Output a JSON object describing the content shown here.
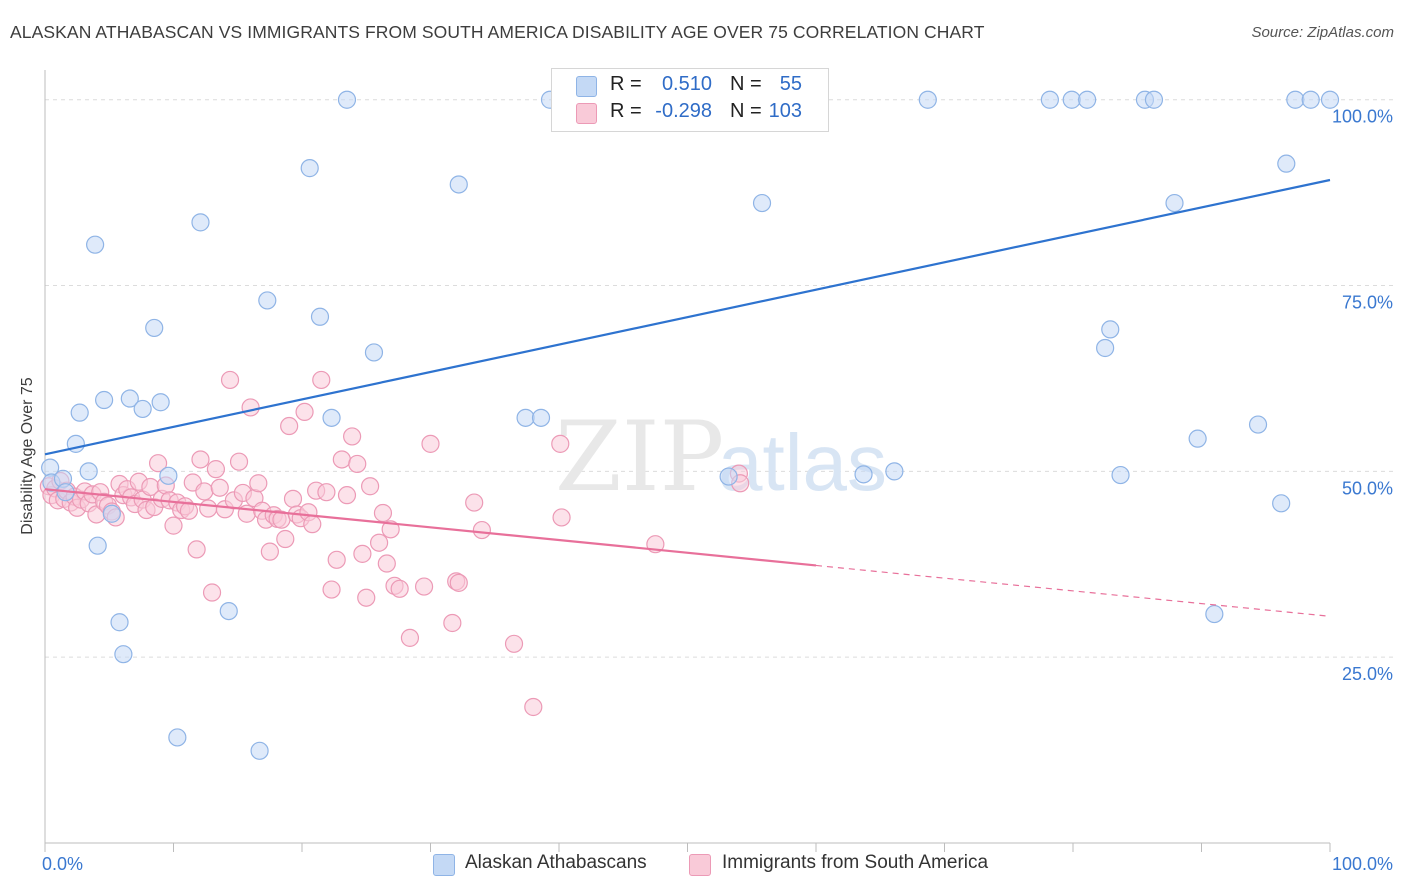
{
  "title": "ALASKAN ATHABASCAN VS IMMIGRANTS FROM SOUTH AMERICA DISABILITY AGE OVER 75 CORRELATION CHART",
  "source": "Source: ZipAtlas.com",
  "watermark": {
    "zip": "ZIP",
    "atlas": "atlas"
  },
  "legend": {
    "rows": [
      {
        "r_label": "R =",
        "r_value": "0.510",
        "n_label": "N =",
        "n_value": "55"
      },
      {
        "r_label": "R =",
        "r_value": "-0.298",
        "n_label": "N =",
        "n_value": "103"
      }
    ]
  },
  "bottom_legend": {
    "series_a": "Alaskan Athabascans",
    "series_b": "Immigrants from South America"
  },
  "colors": {
    "blue_fill": "#c4d9f5",
    "blue_stroke": "#8fb4e6",
    "blue_line": "#2e73cf",
    "pink_fill": "#f9cad8",
    "pink_stroke": "#ec9ab6",
    "pink_line": "#e8709a",
    "axis_label": "#3a78d0",
    "grid": "#dcdcdc"
  },
  "chart_data": {
    "type": "scatter",
    "title": "ALASKAN ATHABASCAN VS IMMIGRANTS FROM SOUTH AMERICA DISABILITY AGE OVER 75 CORRELATION CHART",
    "xlabel": "",
    "ylabel": "Disability Age Over 75",
    "xlim": [
      0,
      100
    ],
    "ylim": [
      0,
      104
    ],
    "x_tick_labels": [
      "0.0%",
      "100.0%"
    ],
    "y_ticks": [
      25,
      50,
      75,
      100
    ],
    "y_tick_labels": [
      "25.0%",
      "50.0%",
      "75.0%",
      "100.0%"
    ],
    "grid": true,
    "legend_position": "top-center",
    "series": [
      {
        "name": "Alaskan Athabascans",
        "color": "#8fb4e6",
        "trend": {
          "x": [
            0,
            100
          ],
          "y": [
            52.3,
            89.2
          ],
          "dashed_from": null
        },
        "points": [
          {
            "x": 0.4,
            "y": 50.5
          },
          {
            "x": 0.5,
            "y": 48.5
          },
          {
            "x": 1.4,
            "y": 49
          },
          {
            "x": 1.6,
            "y": 47.2
          },
          {
            "x": 2.4,
            "y": 53.7
          },
          {
            "x": 2.7,
            "y": 57.9
          },
          {
            "x": 3.4,
            "y": 50
          },
          {
            "x": 3.9,
            "y": 80.5
          },
          {
            "x": 4.1,
            "y": 40
          },
          {
            "x": 4.6,
            "y": 59.6
          },
          {
            "x": 5.2,
            "y": 44.3
          },
          {
            "x": 5.8,
            "y": 29.7
          },
          {
            "x": 6.1,
            "y": 25.4
          },
          {
            "x": 6.6,
            "y": 59.8
          },
          {
            "x": 7.6,
            "y": 58.4
          },
          {
            "x": 8.5,
            "y": 69.3
          },
          {
            "x": 9.0,
            "y": 59.3
          },
          {
            "x": 9.6,
            "y": 49.4
          },
          {
            "x": 10.3,
            "y": 14.2
          },
          {
            "x": 12.1,
            "y": 83.5
          },
          {
            "x": 14.3,
            "y": 31.2
          },
          {
            "x": 16.7,
            "y": 12.4
          },
          {
            "x": 17.3,
            "y": 73
          },
          {
            "x": 20.6,
            "y": 90.8
          },
          {
            "x": 21.4,
            "y": 70.8
          },
          {
            "x": 22.3,
            "y": 57.2
          },
          {
            "x": 23.5,
            "y": 100
          },
          {
            "x": 25.6,
            "y": 66
          },
          {
            "x": 32.2,
            "y": 88.6
          },
          {
            "x": 37.4,
            "y": 57.2
          },
          {
            "x": 38.6,
            "y": 57.2
          },
          {
            "x": 39.3,
            "y": 100
          },
          {
            "x": 53.1,
            "y": 100
          },
          {
            "x": 55.8,
            "y": 86.1
          },
          {
            "x": 53.2,
            "y": 49.3
          },
          {
            "x": 63.7,
            "y": 49.6
          },
          {
            "x": 66.1,
            "y": 50
          },
          {
            "x": 68.7,
            "y": 100
          },
          {
            "x": 78.2,
            "y": 100
          },
          {
            "x": 79.9,
            "y": 100
          },
          {
            "x": 81.1,
            "y": 100
          },
          {
            "x": 82.5,
            "y": 66.6
          },
          {
            "x": 82.9,
            "y": 69.1
          },
          {
            "x": 83.7,
            "y": 49.5
          },
          {
            "x": 85.6,
            "y": 100
          },
          {
            "x": 86.3,
            "y": 100
          },
          {
            "x": 87.9,
            "y": 86.1
          },
          {
            "x": 89.7,
            "y": 54.4
          },
          {
            "x": 91,
            "y": 30.8
          },
          {
            "x": 94.4,
            "y": 56.3
          },
          {
            "x": 96.2,
            "y": 45.7
          },
          {
            "x": 97.3,
            "y": 100
          },
          {
            "x": 98.5,
            "y": 100
          },
          {
            "x": 96.6,
            "y": 91.4
          },
          {
            "x": 100,
            "y": 100
          }
        ]
      },
      {
        "name": "Immigrants from South America",
        "color": "#ec9ab6",
        "trend": {
          "x": [
            0,
            100
          ],
          "y": [
            47.6,
            30.5
          ],
          "dashed_from": 60
        },
        "points": [
          {
            "x": 0.3,
            "y": 48
          },
          {
            "x": 0.5,
            "y": 46.8
          },
          {
            "x": 0.8,
            "y": 47.7
          },
          {
            "x": 1,
            "y": 46.1
          },
          {
            "x": 1.2,
            "y": 48.7
          },
          {
            "x": 1.5,
            "y": 46.3
          },
          {
            "x": 1.7,
            "y": 47.4
          },
          {
            "x": 2,
            "y": 45.8
          },
          {
            "x": 2.3,
            "y": 46.6
          },
          {
            "x": 2.5,
            "y": 45.1
          },
          {
            "x": 2.8,
            "y": 46.2
          },
          {
            "x": 3.1,
            "y": 47.3
          },
          {
            "x": 3.4,
            "y": 45.7
          },
          {
            "x": 3.7,
            "y": 46.9
          },
          {
            "x": 4,
            "y": 44.2
          },
          {
            "x": 4.3,
            "y": 47.2
          },
          {
            "x": 4.6,
            "y": 45.9
          },
          {
            "x": 4.9,
            "y": 45.4
          },
          {
            "x": 5.2,
            "y": 44.6
          },
          {
            "x": 5.5,
            "y": 43.8
          },
          {
            "x": 5.8,
            "y": 48.3
          },
          {
            "x": 6.1,
            "y": 46.8
          },
          {
            "x": 6.4,
            "y": 47.6
          },
          {
            "x": 6.7,
            "y": 46.5
          },
          {
            "x": 7,
            "y": 45.6
          },
          {
            "x": 7.3,
            "y": 48.6
          },
          {
            "x": 7.6,
            "y": 46.2
          },
          {
            "x": 7.9,
            "y": 44.8
          },
          {
            "x": 8.2,
            "y": 47.9
          },
          {
            "x": 8.5,
            "y": 45.2
          },
          {
            "x": 8.8,
            "y": 51.1
          },
          {
            "x": 9.1,
            "y": 46.3
          },
          {
            "x": 9.4,
            "y": 48.1
          },
          {
            "x": 9.7,
            "y": 46.1
          },
          {
            "x": 10,
            "y": 42.7
          },
          {
            "x": 10.3,
            "y": 45.8
          },
          {
            "x": 10.6,
            "y": 44.8
          },
          {
            "x": 10.9,
            "y": 45.3
          },
          {
            "x": 11.2,
            "y": 44.7
          },
          {
            "x": 11.5,
            "y": 48.5
          },
          {
            "x": 11.8,
            "y": 39.5
          },
          {
            "x": 12.1,
            "y": 51.6
          },
          {
            "x": 12.4,
            "y": 47.3
          },
          {
            "x": 12.7,
            "y": 45
          },
          {
            "x": 13,
            "y": 33.7
          },
          {
            "x": 13.3,
            "y": 50.3
          },
          {
            "x": 13.6,
            "y": 47.8
          },
          {
            "x": 14,
            "y": 44.9
          },
          {
            "x": 14.4,
            "y": 62.3
          },
          {
            "x": 14.7,
            "y": 46.1
          },
          {
            "x": 15.1,
            "y": 51.3
          },
          {
            "x": 15.4,
            "y": 47.1
          },
          {
            "x": 15.7,
            "y": 44.3
          },
          {
            "x": 16,
            "y": 58.6
          },
          {
            "x": 16.3,
            "y": 46.4
          },
          {
            "x": 16.6,
            "y": 48.4
          },
          {
            "x": 16.9,
            "y": 44.7
          },
          {
            "x": 17.2,
            "y": 43.5
          },
          {
            "x": 17.5,
            "y": 39.2
          },
          {
            "x": 17.8,
            "y": 44.1
          },
          {
            "x": 18.1,
            "y": 43.6
          },
          {
            "x": 18.4,
            "y": 43.5
          },
          {
            "x": 18.7,
            "y": 40.9
          },
          {
            "x": 19,
            "y": 56.1
          },
          {
            "x": 19.3,
            "y": 46.3
          },
          {
            "x": 19.6,
            "y": 44.2
          },
          {
            "x": 19.9,
            "y": 43.7
          },
          {
            "x": 20.2,
            "y": 58
          },
          {
            "x": 20.5,
            "y": 44.5
          },
          {
            "x": 20.8,
            "y": 42.9
          },
          {
            "x": 21.1,
            "y": 47.4
          },
          {
            "x": 21.5,
            "y": 62.3
          },
          {
            "x": 21.9,
            "y": 47.2
          },
          {
            "x": 22.3,
            "y": 34.1
          },
          {
            "x": 22.7,
            "y": 38.1
          },
          {
            "x": 23.1,
            "y": 51.6
          },
          {
            "x": 23.5,
            "y": 46.8
          },
          {
            "x": 23.9,
            "y": 54.7
          },
          {
            "x": 24.3,
            "y": 51
          },
          {
            "x": 24.7,
            "y": 38.9
          },
          {
            "x": 25,
            "y": 33
          },
          {
            "x": 25.3,
            "y": 48
          },
          {
            "x": 26,
            "y": 40.4
          },
          {
            "x": 26.3,
            "y": 44.4
          },
          {
            "x": 26.6,
            "y": 37.6
          },
          {
            "x": 26.9,
            "y": 42.2
          },
          {
            "x": 27.2,
            "y": 34.6
          },
          {
            "x": 27.6,
            "y": 34.2
          },
          {
            "x": 28.4,
            "y": 27.6
          },
          {
            "x": 29.5,
            "y": 34.5
          },
          {
            "x": 30,
            "y": 53.7
          },
          {
            "x": 31.7,
            "y": 29.6
          },
          {
            "x": 32,
            "y": 35.2
          },
          {
            "x": 32.2,
            "y": 35
          },
          {
            "x": 33.4,
            "y": 45.8
          },
          {
            "x": 34,
            "y": 42.1
          },
          {
            "x": 36.5,
            "y": 26.8
          },
          {
            "x": 38,
            "y": 18.3
          },
          {
            "x": 40.1,
            "y": 53.7
          },
          {
            "x": 40.2,
            "y": 43.8
          },
          {
            "x": 47.5,
            "y": 40.2
          },
          {
            "x": 54,
            "y": 49.7
          },
          {
            "x": 54.1,
            "y": 48.4
          }
        ]
      }
    ]
  }
}
